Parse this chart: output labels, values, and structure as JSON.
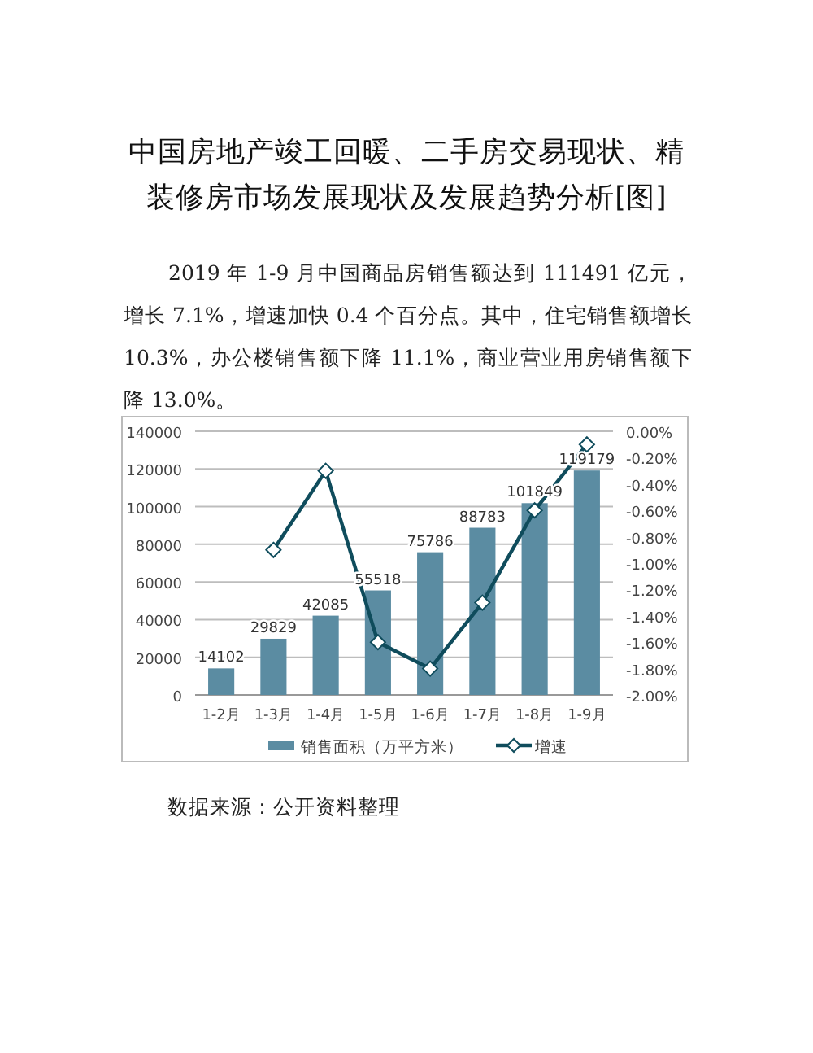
{
  "chart_data": {
    "type": "bar",
    "title": "中国房地产竣工回暖、二手房交易现状、精装修房市场发展现状及发展趋势分析[图]",
    "annotations": [
      "2019 年 1-9 月中国商品房销售额达到 111491 亿元，增长 7.1%，增速加快 0.4 个百分点。其中，住宅销售额增长 10.3%，办公楼销售额下降 11.1%，商业营业用房销售额下降 13.0%。",
      "数据来源：公开资料整理"
    ],
    "categories": [
      "1-2月",
      "1-3月",
      "1-4月",
      "1-5月",
      "1-6月",
      "1-7月",
      "1-8月",
      "1-9月"
    ],
    "series": [
      {
        "name": "销售面积（万平方米）",
        "color": "#5b8ca2",
        "values": [
          14102,
          29829,
          42085,
          55518,
          75786,
          88783,
          101849,
          119179
        ],
        "value_labels": [
          "14102",
          "29829",
          "42085",
          "55518",
          "75786",
          "88783",
          "101849",
          "119179"
        ]
      },
      {
        "name": "增速",
        "type": "line",
        "axis": "y2",
        "color": "#0f4c5c",
        "marker": "diamond",
        "values": [
          null,
          -0.9,
          -0.3,
          -1.6,
          -1.8,
          -1.3,
          -0.6,
          -0.1
        ]
      }
    ],
    "ylim": [
      0,
      140000
    ],
    "yticks": [
      0,
      20000,
      40000,
      60000,
      80000,
      100000,
      120000,
      140000
    ],
    "y2lim": [
      -2,
      0
    ],
    "y2ticks": [
      {
        "value": 0,
        "label": "0.00%"
      },
      {
        "value": -0.2,
        "label": "-0.20%"
      },
      {
        "value": -0.4,
        "label": "-0.40%"
      },
      {
        "value": -0.6,
        "label": "-0.60%"
      },
      {
        "value": -0.8,
        "label": "-0.80%"
      },
      {
        "value": -1,
        "label": "-1.00%"
      },
      {
        "value": -1.2,
        "label": "-1.20%"
      },
      {
        "value": -1.4,
        "label": "-1.40%"
      },
      {
        "value": -1.6,
        "label": "-1.60%"
      },
      {
        "value": -1.8,
        "label": "-1.80%"
      },
      {
        "value": -2,
        "label": "-2.00%"
      }
    ],
    "grid": "y",
    "legend": "bottom"
  }
}
